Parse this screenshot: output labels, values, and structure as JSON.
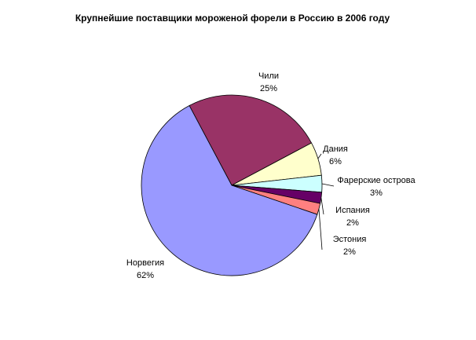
{
  "chart_data": {
    "type": "pie",
    "title": "Крупнейшие поставщики мороженой форели в Россию в 2006 году",
    "categories": [
      "Чили",
      "Дания",
      "Фарерские острова",
      "Испания",
      "Эстония",
      "Норвегия"
    ],
    "values": [
      25,
      6,
      3,
      2,
      2,
      62
    ],
    "value_labels": [
      "25%",
      "6%",
      "3%",
      "2%",
      "2%",
      "62%"
    ],
    "colors": [
      "#993366",
      "#ffffcc",
      "#ccffff",
      "#660066",
      "#ff8080",
      "#9999ff"
    ]
  }
}
